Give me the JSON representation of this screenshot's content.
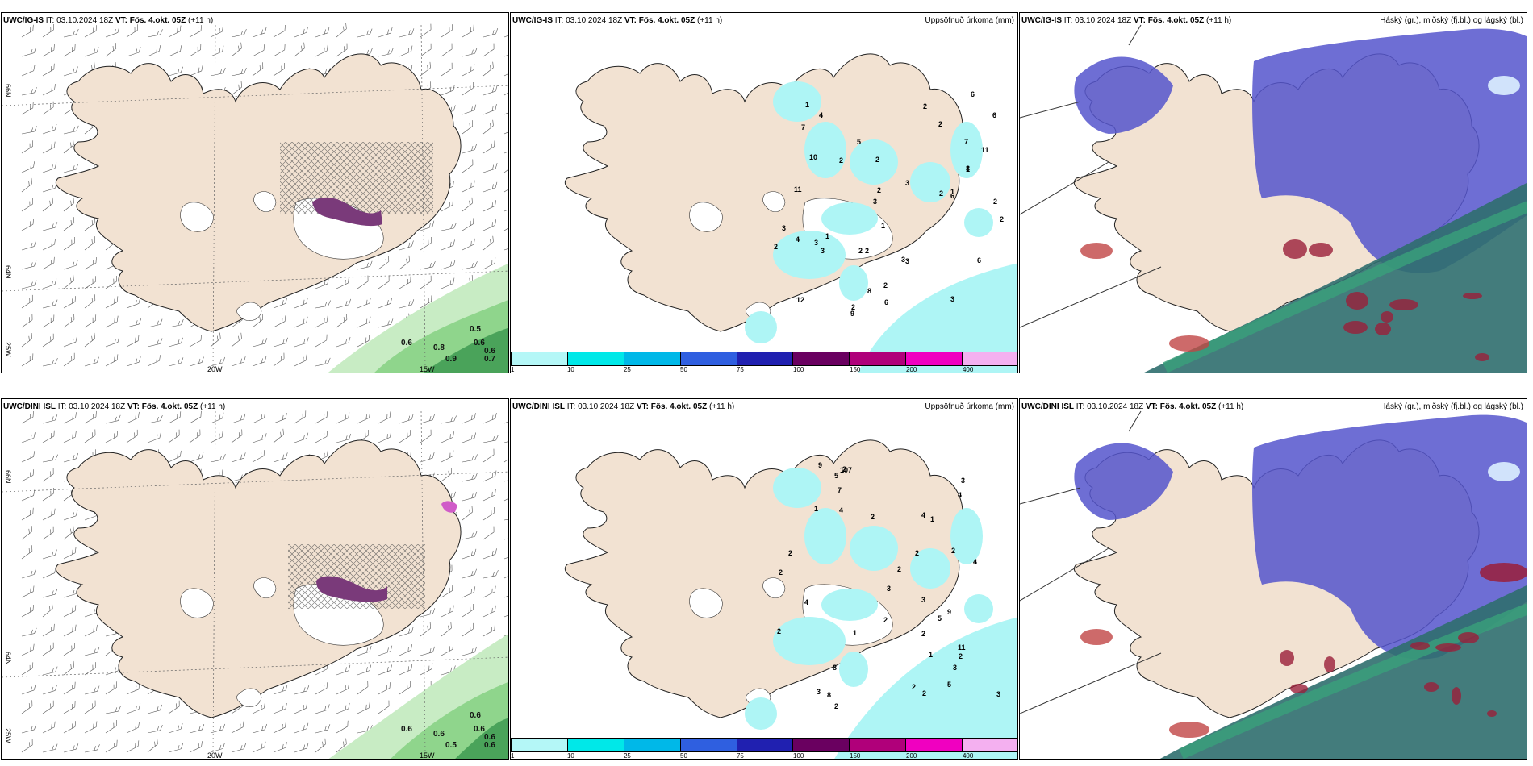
{
  "colors": {
    "land": "#f2e2d2",
    "ice": "#ffffff",
    "precip_light": "#aef5f5",
    "cloud_high": "#5555cc",
    "cloud_mid": "#3aa07a",
    "cloud_low": "#2f6e6e",
    "green_light": "#c8ecc4",
    "green_mid": "#8fd58c",
    "green_dark": "#4aa35a",
    "purple": "#7a3a7a"
  },
  "panels": [
    {
      "model": "UWC/IG-IS",
      "it_label": "IT:",
      "it_value": "03.10.2024 18Z",
      "vt_label": "VT:",
      "vt_value": "Fös. 4.okt. 05Z",
      "lead": "(+11 h)",
      "title": ""
    },
    {
      "model": "UWC/IG-IS",
      "it_label": "IT:",
      "it_value": "03.10.2024 18Z",
      "vt_label": "VT:",
      "vt_value": "Fös. 4.okt. 05Z",
      "lead": "(+11 h)",
      "title": "Uppsöfnuð úrkoma (mm)"
    },
    {
      "model": "UWC/IG-IS",
      "it_label": "IT:",
      "it_value": "03.10.2024 18Z",
      "vt_label": "VT:",
      "vt_value": "Fös. 4.okt. 05Z",
      "lead": "(+11 h)",
      "title": "Háský (gr.), miðský (fj.bl.) og lágský (bl.)"
    },
    {
      "model": "UWC/DINI ISL",
      "it_label": "IT:",
      "it_value": "03.10.2024 18Z",
      "vt_label": "VT:",
      "vt_value": "Fös. 4.okt. 05Z",
      "lead": "(+11 h)",
      "title": ""
    },
    {
      "model": "UWC/DINI ISL",
      "it_label": "IT:",
      "it_value": "03.10.2024 18Z",
      "vt_label": "VT:",
      "vt_value": "Fös. 4.okt. 05Z",
      "lead": "(+11 h)",
      "title": "Uppsöfnuð úrkoma (mm)"
    },
    {
      "model": "UWC/DINI ISL",
      "it_label": "IT:",
      "it_value": "03.10.2024 18Z",
      "vt_label": "VT:",
      "vt_value": "Fös. 4.okt. 05Z",
      "lead": "(+11 h)",
      "title": "Háský (gr.), miðský (fj.bl.) og lágský (bl.)"
    }
  ],
  "axis_labels": {
    "lon1": "20W",
    "lon2": "15W",
    "lat1": "66N",
    "lat2": "64N",
    "lat3": "25W"
  },
  "colorbar": {
    "labels": [
      "1",
      "10",
      "25",
      "50",
      "75",
      "100",
      "150",
      "200",
      "400"
    ],
    "colors": [
      "#b4f7f7",
      "#00e8e8",
      "#00b8e8",
      "#2f5fe0",
      "#2020b0",
      "#6a0060",
      "#b0007a",
      "#f000c0",
      "#f4b0f0"
    ]
  },
  "wind_values_top": [
    "0.5",
    "0.6",
    "0.6",
    "0.8",
    "0.6",
    "0.9",
    "0.7"
  ],
  "wind_values_bottom": [
    "0.6",
    "0.6",
    "0.6",
    "0.6",
    "0.6",
    "0.5",
    "0.6"
  ],
  "precip_values_top": [
    "2",
    "3",
    "1",
    "1",
    "2",
    "5",
    "3",
    "3",
    "2",
    "2",
    "3",
    "4",
    "2",
    "11",
    "12",
    "6",
    "3",
    "2",
    "11",
    "3",
    "3",
    "7",
    "1",
    "6",
    "2",
    "6",
    "8",
    "10",
    "6",
    "7",
    "3",
    "6",
    "9",
    "2",
    "4",
    "2",
    "1",
    "3",
    "2",
    "2",
    "2",
    "1",
    "2"
  ],
  "precip_values_bottom": [
    "2",
    "5",
    "2",
    "1",
    "1",
    "2",
    "2",
    "2",
    "2",
    "4",
    "1",
    "2",
    "2",
    "9",
    "9",
    "11",
    "3",
    "2",
    "3",
    "4",
    "3",
    "2",
    "8",
    "1",
    "5",
    "5",
    "8",
    "7",
    "10",
    "7",
    "3",
    "4",
    "2",
    "2",
    "2",
    "3",
    "4",
    "3",
    "4",
    "2"
  ]
}
